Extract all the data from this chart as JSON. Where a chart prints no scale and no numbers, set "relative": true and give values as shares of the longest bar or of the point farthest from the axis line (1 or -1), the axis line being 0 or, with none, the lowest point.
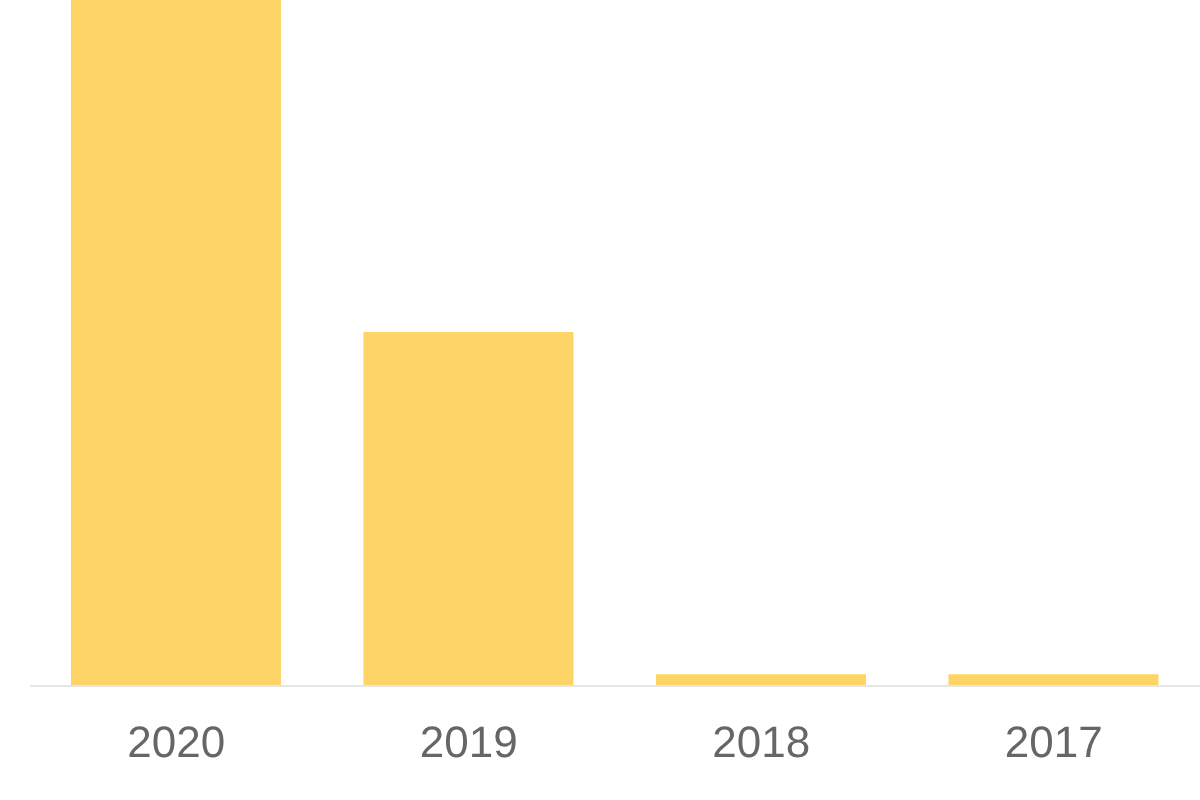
{
  "chart_data": {
    "type": "bar",
    "relative": true,
    "categories": [
      "2020",
      "2019",
      "2018",
      "2017"
    ],
    "values": [
      1,
      0.516,
      0.017,
      0.017
    ],
    "color": "#ffd466"
  }
}
